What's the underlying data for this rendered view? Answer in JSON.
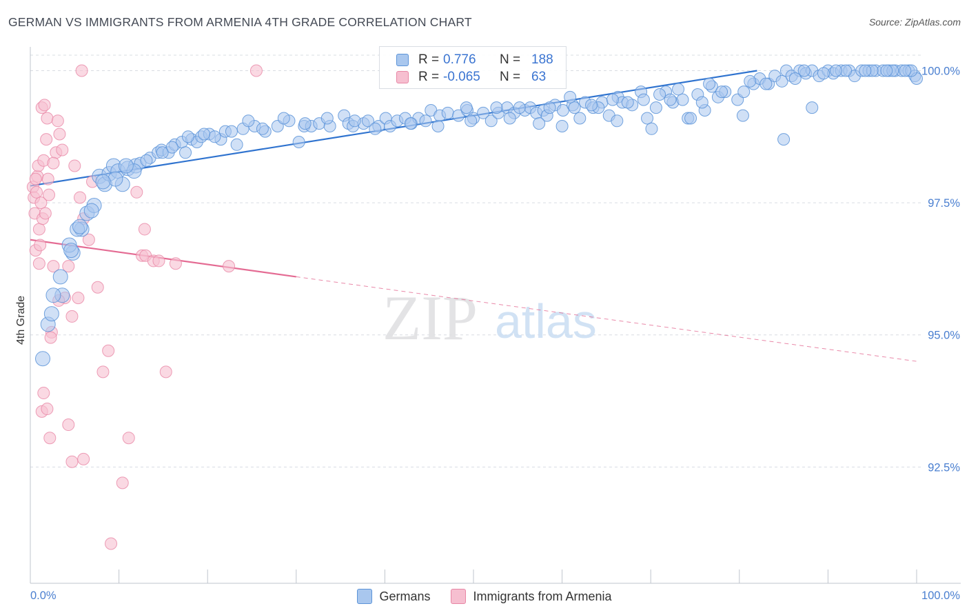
{
  "header": {
    "title": "GERMAN VS IMMIGRANTS FROM ARMENIA 4TH GRADE CORRELATION CHART",
    "source": "Source: ZipAtlas.com"
  },
  "watermark": {
    "zip": "ZIP",
    "atlas": "atlas"
  },
  "legend_top": {
    "r_label": "R =",
    "n_label": "N =",
    "rows": [
      {
        "series": "Germans",
        "r": "0.776",
        "n": "188"
      },
      {
        "series": "Immigrants from Armenia",
        "r": "-0.065",
        "n": "63"
      }
    ]
  },
  "colors": {
    "blue_fill": "#a9c7ee",
    "blue_stroke": "#5b93d8",
    "blue_line": "#2f73cf",
    "pink_fill": "#f6bfd0",
    "pink_stroke": "#e886a5",
    "pink_line": "#e46b93",
    "tick_text": "#4a7fd0",
    "grid": "#d8dce2"
  },
  "chart_data": {
    "type": "scatter",
    "title": "GERMAN VS IMMIGRANTS FROM ARMENIA 4TH GRADE CORRELATION CHART",
    "xlabel": "",
    "ylabel": "4th Grade",
    "xlim": [
      0,
      100
    ],
    "ylim": [
      90.3,
      100.45
    ],
    "x_tick_labels": [
      "0.0%",
      "100.0%"
    ],
    "y_ticks": [
      92.5,
      95.0,
      97.5,
      100.0
    ],
    "y_tick_labels": [
      "92.5%",
      "95.0%",
      "97.5%",
      "100.0%"
    ],
    "grid": "horizontal dashed",
    "legend": "bottom-center",
    "series": [
      {
        "name": "Germans",
        "color": "#a9c7ee",
        "trend": {
          "x": [
            0,
            82
          ],
          "y": [
            97.82,
            100.0
          ],
          "style": "solid"
        },
        "points": [
          [
            1.4,
            94.55
          ],
          [
            2.0,
            95.2
          ],
          [
            2.4,
            95.4
          ],
          [
            3.6,
            95.75
          ],
          [
            3.4,
            96.1
          ],
          [
            4.8,
            96.55
          ],
          [
            5.8,
            97.0
          ],
          [
            4.4,
            96.7
          ],
          [
            5.3,
            97.0
          ],
          [
            6.4,
            97.3
          ],
          [
            7.2,
            97.45
          ],
          [
            7.8,
            98.0
          ],
          [
            8.4,
            97.85
          ],
          [
            8.9,
            98.05
          ],
          [
            9.4,
            98.2
          ],
          [
            9.9,
            98.1
          ],
          [
            10.4,
            97.85
          ],
          [
            11.0,
            98.15
          ],
          [
            11.9,
            98.2
          ],
          [
            12.4,
            98.25
          ],
          [
            13.5,
            98.35
          ],
          [
            14.4,
            98.45
          ],
          [
            14.8,
            98.5
          ],
          [
            15.6,
            98.45
          ],
          [
            16.3,
            98.6
          ],
          [
            17.1,
            98.65
          ],
          [
            17.5,
            98.45
          ],
          [
            18.2,
            98.7
          ],
          [
            18.8,
            98.65
          ],
          [
            19.3,
            98.75
          ],
          [
            20.2,
            98.8
          ],
          [
            21.5,
            98.7
          ],
          [
            22.0,
            98.85
          ],
          [
            23.3,
            98.6
          ],
          [
            24.0,
            98.9
          ],
          [
            25.3,
            98.95
          ],
          [
            26.5,
            98.85
          ],
          [
            27.9,
            98.95
          ],
          [
            29.2,
            99.05
          ],
          [
            30.3,
            98.65
          ],
          [
            30.9,
            98.95
          ],
          [
            31.7,
            98.95
          ],
          [
            32.6,
            99.0
          ],
          [
            33.8,
            98.95
          ],
          [
            35.4,
            99.15
          ],
          [
            35.9,
            99.0
          ],
          [
            36.4,
            98.95
          ],
          [
            37.6,
            99.0
          ],
          [
            38.1,
            99.05
          ],
          [
            39.3,
            98.95
          ],
          [
            40.1,
            99.1
          ],
          [
            40.6,
            98.95
          ],
          [
            41.4,
            99.05
          ],
          [
            42.3,
            99.1
          ],
          [
            43.0,
            99.0
          ],
          [
            43.8,
            99.1
          ],
          [
            44.6,
            99.05
          ],
          [
            45.2,
            99.25
          ],
          [
            46.2,
            99.15
          ],
          [
            47.1,
            99.2
          ],
          [
            48.3,
            99.15
          ],
          [
            49.3,
            99.25
          ],
          [
            50.0,
            99.1
          ],
          [
            51.1,
            99.2
          ],
          [
            52.0,
            99.05
          ],
          [
            52.8,
            99.2
          ],
          [
            53.8,
            99.3
          ],
          [
            54.6,
            99.2
          ],
          [
            55.8,
            99.25
          ],
          [
            56.4,
            99.3
          ],
          [
            57.1,
            99.2
          ],
          [
            57.9,
            99.25
          ],
          [
            58.3,
            99.15
          ],
          [
            59.2,
            99.35
          ],
          [
            60.1,
            99.25
          ],
          [
            61.2,
            99.35
          ],
          [
            62.0,
            99.1
          ],
          [
            62.6,
            99.4
          ],
          [
            63.5,
            99.3
          ],
          [
            64.5,
            99.4
          ],
          [
            65.3,
            99.15
          ],
          [
            66.3,
            99.5
          ],
          [
            66.8,
            99.4
          ],
          [
            67.9,
            99.35
          ],
          [
            68.9,
            99.6
          ],
          [
            69.6,
            99.1
          ],
          [
            70.6,
            99.3
          ],
          [
            71.7,
            99.6
          ],
          [
            72.5,
            99.4
          ],
          [
            73.6,
            99.45
          ],
          [
            74.2,
            99.1
          ],
          [
            75.3,
            99.55
          ],
          [
            76.1,
            99.25
          ],
          [
            76.9,
            99.7
          ],
          [
            77.6,
            99.5
          ],
          [
            78.4,
            99.6
          ],
          [
            79.8,
            99.45
          ],
          [
            80.5,
            99.6
          ],
          [
            81.6,
            99.75
          ],
          [
            82.3,
            99.85
          ],
          [
            83.3,
            99.75
          ],
          [
            84.0,
            99.9
          ],
          [
            84.8,
            99.8
          ],
          [
            85.3,
            100.0
          ],
          [
            85.9,
            99.9
          ],
          [
            86.8,
            100.0
          ],
          [
            87.5,
            99.95
          ],
          [
            88.2,
            100.0
          ],
          [
            89.0,
            99.9
          ],
          [
            90.0,
            100.0
          ],
          [
            90.6,
            99.95
          ],
          [
            91.5,
            100.0
          ],
          [
            92.4,
            100.0
          ],
          [
            93.0,
            99.9
          ],
          [
            93.8,
            100.0
          ],
          [
            94.6,
            100.0
          ],
          [
            95.4,
            100.0
          ],
          [
            96.2,
            100.0
          ],
          [
            96.9,
            100.0
          ],
          [
            97.6,
            100.0
          ],
          [
            98.3,
            100.0
          ],
          [
            99.1,
            100.0
          ],
          [
            99.8,
            99.9
          ],
          [
            100.0,
            99.85
          ],
          [
            80.4,
            99.15
          ],
          [
            85.0,
            98.7
          ],
          [
            88.2,
            99.3
          ],
          [
            74.5,
            99.1
          ],
          [
            70.1,
            98.9
          ],
          [
            66.2,
            99.05
          ],
          [
            60.0,
            98.95
          ],
          [
            57.4,
            99.0
          ],
          [
            54.1,
            99.1
          ],
          [
            49.7,
            99.05
          ],
          [
            46.0,
            98.95
          ],
          [
            42.9,
            99.0
          ],
          [
            38.9,
            98.9
          ],
          [
            36.6,
            99.05
          ],
          [
            33.5,
            99.1
          ],
          [
            31.0,
            99.0
          ],
          [
            28.6,
            99.1
          ],
          [
            26.2,
            98.9
          ],
          [
            24.6,
            99.05
          ],
          [
            22.7,
            98.85
          ],
          [
            20.8,
            98.75
          ],
          [
            19.6,
            98.8
          ],
          [
            17.8,
            98.75
          ],
          [
            16.0,
            98.55
          ],
          [
            14.9,
            98.45
          ],
          [
            13.1,
            98.3
          ],
          [
            11.7,
            98.1
          ],
          [
            10.8,
            98.2
          ],
          [
            9.6,
            97.95
          ],
          [
            8.2,
            97.9
          ],
          [
            6.9,
            97.35
          ],
          [
            5.6,
            97.05
          ],
          [
            4.6,
            96.6
          ],
          [
            2.6,
            95.75
          ],
          [
            49.2,
            99.3
          ],
          [
            52.6,
            99.3
          ],
          [
            55.2,
            99.3
          ],
          [
            58.6,
            99.3
          ],
          [
            61.4,
            99.3
          ],
          [
            64.1,
            99.3
          ],
          [
            67.4,
            99.4
          ],
          [
            72.2,
            99.45
          ],
          [
            78.0,
            99.6
          ],
          [
            83.0,
            99.75
          ],
          [
            86.3,
            99.85
          ],
          [
            89.5,
            99.95
          ],
          [
            92.0,
            100.0
          ],
          [
            95.0,
            100.0
          ],
          [
            97.3,
            100.0
          ],
          [
            99.4,
            100.0
          ],
          [
            75.8,
            99.4
          ],
          [
            69.2,
            99.45
          ],
          [
            63.3,
            99.35
          ],
          [
            60.9,
            99.5
          ],
          [
            71.0,
            99.55
          ],
          [
            65.7,
            99.45
          ],
          [
            81.2,
            99.8
          ],
          [
            87.3,
            100.0
          ],
          [
            90.9,
            100.0
          ],
          [
            94.2,
            100.0
          ],
          [
            96.6,
            100.0
          ],
          [
            98.7,
            100.0
          ],
          [
            76.6,
            99.75
          ],
          [
            73.1,
            99.65
          ]
        ]
      },
      {
        "name": "Immigrants from Armenia",
        "color": "#f6bfd0",
        "trend": {
          "x": [
            0,
            30
          ],
          "y": [
            96.8,
            96.1
          ],
          "style": "solid",
          "extended_to": [
            100,
            94.5
          ]
        },
        "points": [
          [
            0.3,
            97.8
          ],
          [
            0.4,
            97.6
          ],
          [
            0.5,
            97.3
          ],
          [
            0.6,
            96.6
          ],
          [
            0.7,
            97.7
          ],
          [
            0.8,
            98.0
          ],
          [
            0.9,
            98.2
          ],
          [
            1.0,
            97.0
          ],
          [
            1.1,
            96.7
          ],
          [
            1.2,
            97.5
          ],
          [
            1.3,
            99.3
          ],
          [
            1.4,
            97.2
          ],
          [
            1.5,
            98.3
          ],
          [
            1.6,
            99.35
          ],
          [
            1.7,
            97.3
          ],
          [
            1.8,
            98.7
          ],
          [
            1.9,
            99.1
          ],
          [
            2.0,
            97.95
          ],
          [
            2.1,
            97.65
          ],
          [
            2.4,
            95.05
          ],
          [
            2.6,
            96.3
          ],
          [
            2.9,
            98.45
          ],
          [
            3.1,
            99.05
          ],
          [
            3.3,
            98.8
          ],
          [
            3.6,
            98.5
          ],
          [
            3.9,
            95.7
          ],
          [
            4.3,
            96.3
          ],
          [
            4.7,
            95.35
          ],
          [
            5.0,
            98.2
          ],
          [
            5.4,
            95.7
          ],
          [
            5.6,
            97.6
          ],
          [
            6.0,
            97.2
          ],
          [
            6.6,
            96.8
          ],
          [
            2.3,
            94.95
          ],
          [
            1.5,
            93.9
          ],
          [
            1.3,
            93.55
          ],
          [
            1.9,
            93.6
          ],
          [
            2.2,
            93.05
          ],
          [
            4.3,
            93.3
          ],
          [
            4.7,
            92.6
          ],
          [
            7.0,
            97.9
          ],
          [
            7.6,
            95.9
          ],
          [
            8.2,
            94.3
          ],
          [
            8.8,
            94.7
          ],
          [
            10.4,
            92.2
          ],
          [
            12.0,
            97.7
          ],
          [
            12.6,
            96.5
          ],
          [
            13.0,
            96.5
          ],
          [
            12.9,
            97.0
          ],
          [
            13.9,
            96.4
          ],
          [
            14.5,
            96.4
          ],
          [
            15.3,
            94.3
          ],
          [
            22.4,
            96.3
          ],
          [
            25.5,
            100.0
          ],
          [
            5.8,
            100.0
          ],
          [
            9.1,
            91.05
          ],
          [
            2.6,
            98.25
          ],
          [
            3.2,
            95.65
          ],
          [
            0.6,
            97.95
          ],
          [
            1.0,
            96.35
          ],
          [
            6.0,
            92.65
          ],
          [
            11.1,
            93.05
          ],
          [
            16.4,
            96.35
          ]
        ]
      }
    ]
  },
  "legend_bottom": {
    "items": [
      {
        "label": "Germans"
      },
      {
        "label": "Immigrants from Armenia"
      }
    ]
  }
}
